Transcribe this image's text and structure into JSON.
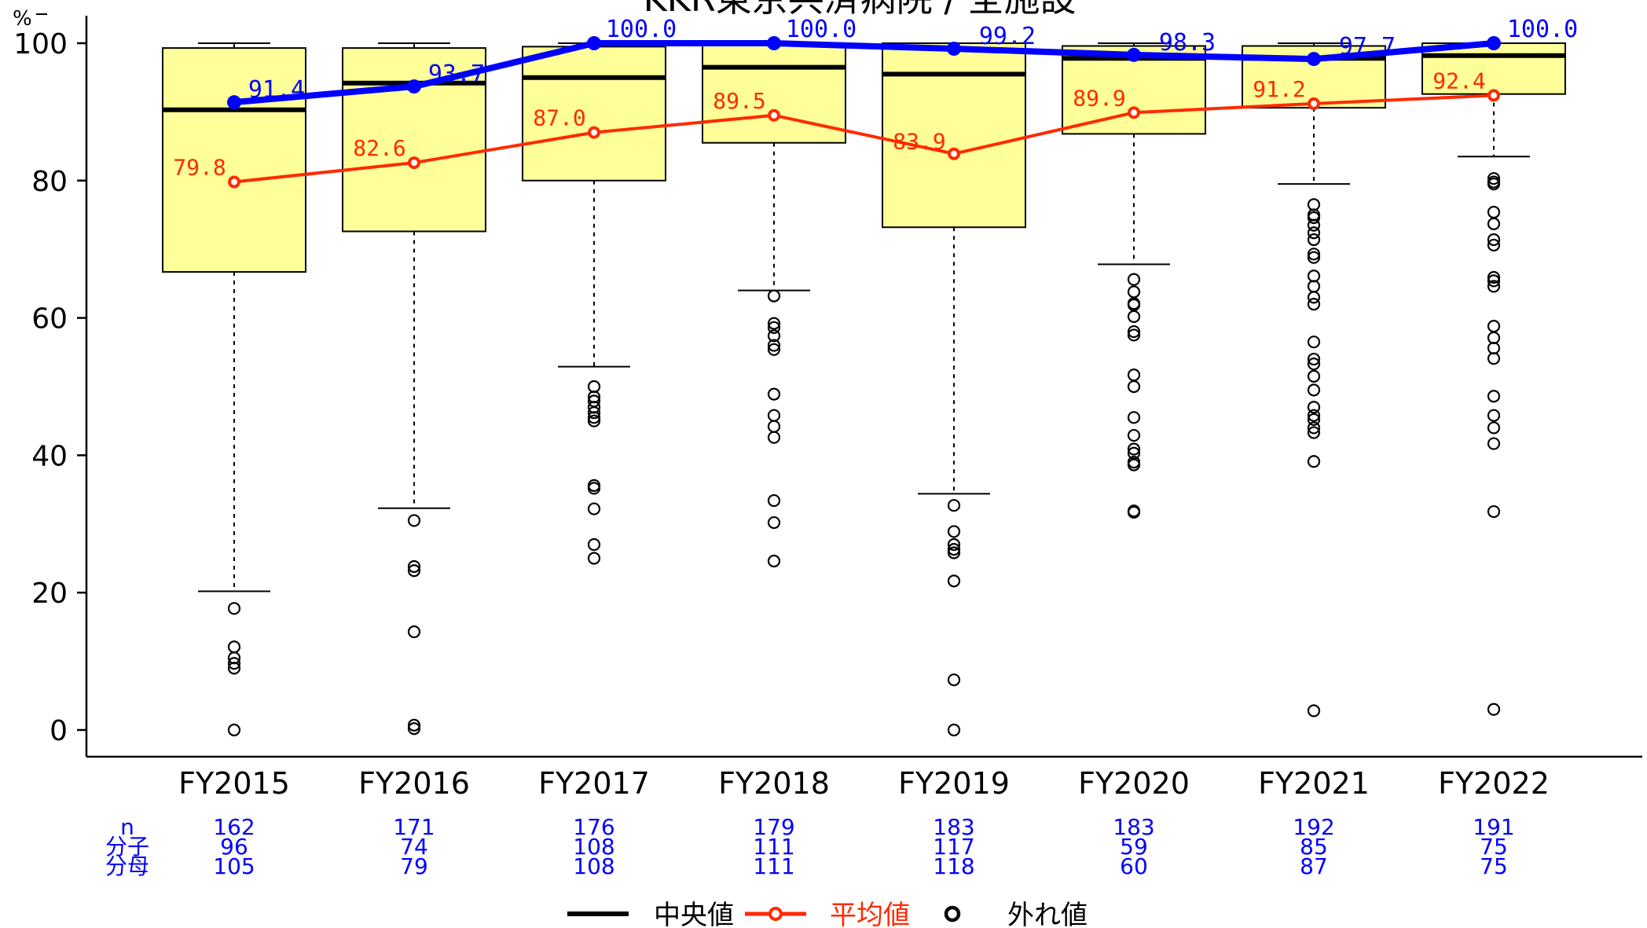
{
  "chart_data": {
    "type": "box",
    "title": "KKR東京共済病院 / 全施設",
    "ylabel": "%",
    "ylim": [
      -3.6,
      104
    ],
    "yticks": [
      0,
      20,
      40,
      60,
      80,
      100
    ],
    "categories": [
      "FY2015",
      "FY2016",
      "FY2017",
      "FY2018",
      "FY2019",
      "FY2020",
      "FY2021",
      "FY2022"
    ],
    "boxes": [
      {
        "q1": 66.7,
        "median": 90.3,
        "q3": 99.3,
        "whisker_low": 20.2,
        "whisker_high": 100.0
      },
      {
        "q1": 72.6,
        "median": 94.2,
        "q3": 99.3,
        "whisker_low": 32.3,
        "whisker_high": 100.0
      },
      {
        "q1": 80.0,
        "median": 95.0,
        "q3": 99.5,
        "whisker_low": 52.9,
        "whisker_high": 100.0
      },
      {
        "q1": 85.5,
        "median": 96.5,
        "q3": 100.0,
        "whisker_low": 64.0,
        "whisker_high": 100.0
      },
      {
        "q1": 73.2,
        "median": 95.5,
        "q3": 100.0,
        "whisker_low": 34.4,
        "whisker_high": 100.0
      },
      {
        "q1": 86.8,
        "median": 97.8,
        "q3": 99.6,
        "whisker_low": 67.8,
        "whisker_high": 100.0
      },
      {
        "q1": 90.6,
        "median": 97.8,
        "q3": 99.6,
        "whisker_low": 79.5,
        "whisker_high": 100.0
      },
      {
        "q1": 92.6,
        "median": 98.2,
        "q3": 100.0,
        "whisker_low": 83.5,
        "whisker_high": 100.0
      }
    ],
    "outliers": [
      [
        17.7,
        12.1,
        10.5,
        9.7,
        9.0,
        0.0
      ],
      [
        30.5,
        23.8,
        23.2,
        14.3,
        0.7,
        0.2
      ],
      [
        50.0,
        48.5,
        47.9,
        47.0,
        46.2,
        45.5,
        45.0,
        35.6,
        35.2,
        32.2,
        27.0,
        25.0
      ],
      [
        63.2,
        59.2,
        58.6,
        57.4,
        56.0,
        55.4,
        48.9,
        45.8,
        44.2,
        42.6,
        33.4,
        30.2,
        24.6
      ],
      [
        32.7,
        28.9,
        27.0,
        26.3,
        25.8,
        21.7,
        7.3,
        0.0
      ],
      [
        65.6,
        63.8,
        62.1,
        61.9,
        60.2,
        58.0,
        57.5,
        51.7,
        50.0,
        45.5,
        42.9,
        40.9,
        40.3,
        39.0,
        38.6,
        31.9,
        31.7
      ],
      [
        76.5,
        75.0,
        74.6,
        73.5,
        72.4,
        71.4,
        69.3,
        68.8,
        66.1,
        64.6,
        63.0,
        62.0,
        56.5,
        54.0,
        53.3,
        51.5,
        49.5,
        47.0,
        45.8,
        45.2,
        44.0,
        43.3,
        39.1,
        2.8
      ],
      [
        80.3,
        79.8,
        79.5,
        75.4,
        73.7,
        71.4,
        70.6,
        65.9,
        65.4,
        64.6,
        58.8,
        57.1,
        55.6,
        54.1,
        48.6,
        45.8,
        44.0,
        41.7,
        31.8,
        3.0
      ]
    ],
    "series": [
      {
        "name": "平均値",
        "color": "#ff2a00",
        "values": [
          79.8,
          82.6,
          87.0,
          89.5,
          83.9,
          89.9,
          91.2,
          92.4
        ],
        "labels": [
          "79.8",
          "82.6",
          "87.0",
          "89.5",
          "83.9",
          "89.9",
          "91.2",
          "92.4"
        ]
      },
      {
        "name": "",
        "color": "#0000ff",
        "values": [
          91.4,
          93.7,
          100.0,
          100.0,
          99.2,
          98.3,
          97.7,
          100.0
        ],
        "labels": [
          "91.4",
          "93.7",
          "100.0",
          "100.0",
          "99.2",
          "98.3",
          "97.7",
          "100.0"
        ]
      }
    ],
    "table": {
      "row_labels": [
        "n",
        "分子",
        "分母"
      ],
      "rows": [
        [
          "162",
          "171",
          "176",
          "179",
          "183",
          "183",
          "192",
          "191"
        ],
        [
          "96",
          "74",
          "108",
          "111",
          "117",
          "59",
          "85",
          "75"
        ],
        [
          "105",
          "79",
          "108",
          "111",
          "118",
          "60",
          "87",
          "75"
        ]
      ]
    },
    "legend": {
      "position": "bottom",
      "items": [
        {
          "label": "中央値",
          "symbol": "line",
          "color": "#000000"
        },
        {
          "label": "平均値",
          "symbol": "line-point",
          "color": "#ff2a00"
        },
        {
          "label": "外れ値",
          "symbol": "circle",
          "color": "#000000"
        }
      ]
    },
    "colors": {
      "box_fill": "#ffff99",
      "median": "#000000",
      "mean": "#ff2a00",
      "facility": "#0000ff",
      "table_text": "#0000ff"
    },
    "grid": false
  }
}
